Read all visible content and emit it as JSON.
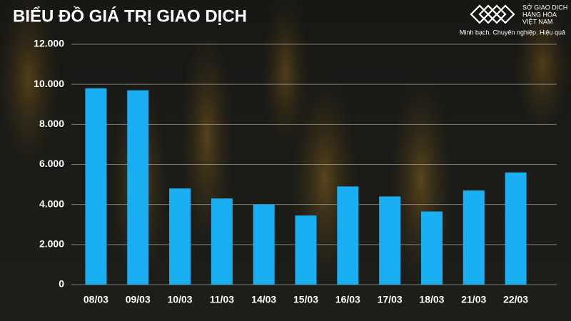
{
  "chart_data": {
    "type": "bar",
    "title": "BIỂU ĐỒ GIÁ TRỊ GIAO DỊCH",
    "categories": [
      "08/03",
      "09/03",
      "10/03",
      "11/03",
      "14/03",
      "15/03",
      "16/03",
      "17/03",
      "18/03",
      "21/03",
      "22/03"
    ],
    "values": [
      9800,
      9700,
      4800,
      4300,
      4000,
      3450,
      4900,
      4400,
      3650,
      4700,
      5600
    ],
    "color": "#1aaef2",
    "ylim": [
      0,
      12000
    ],
    "yticks": [
      0,
      {
        "value": 2000,
        "label": "2.000"
      },
      {
        "value": 4000,
        "label": "4.000"
      },
      {
        "value": 6000,
        "label": "6.000"
      },
      {
        "value": 8000,
        "label": "8.000"
      },
      {
        "value": 10000,
        "label": "10.000"
      },
      {
        "value": 12000,
        "label": "12.000"
      }
    ],
    "grid": true
  },
  "logo": {
    "lines": [
      "SỞ GIAO DỊCH",
      "HÀNG HÓA",
      "VIỆT NAM"
    ],
    "tagline": "Minh bạch. Chuyên nghiệp. Hiệu quả"
  }
}
